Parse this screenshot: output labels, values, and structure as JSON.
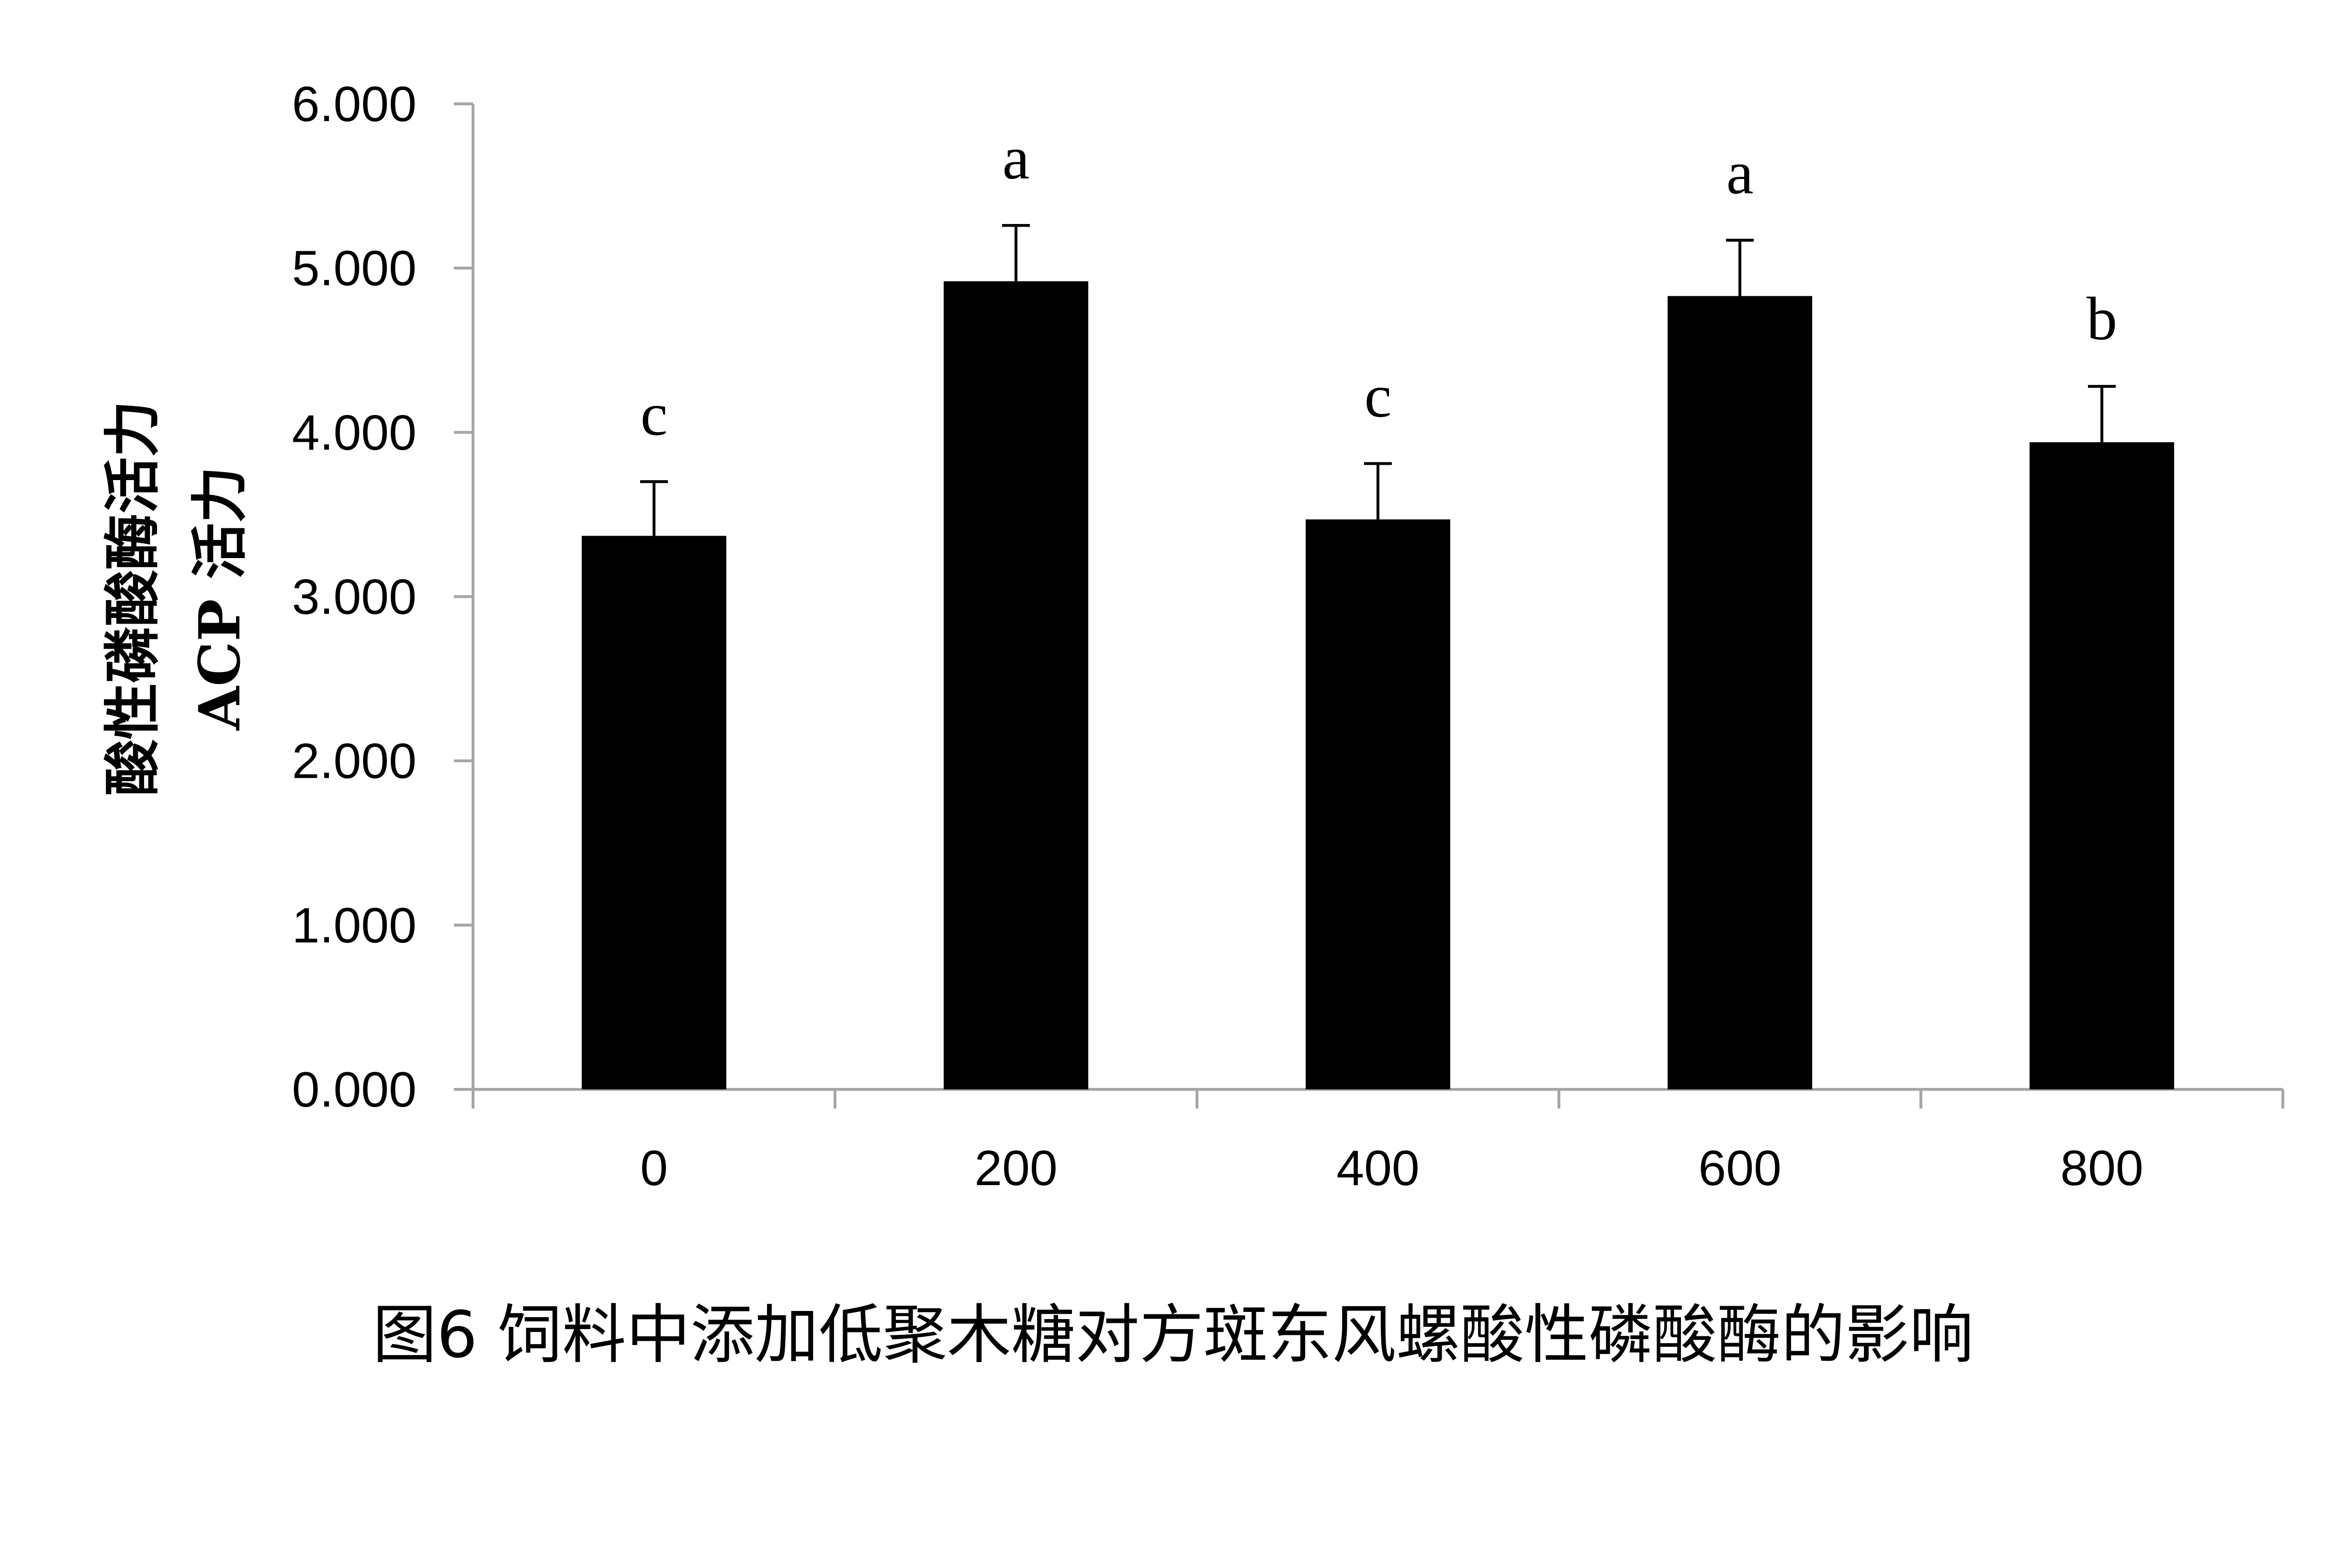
{
  "chart_data": {
    "type": "bar",
    "categories": [
      "0",
      "200",
      "400",
      "600",
      "800"
    ],
    "values": [
      3.37,
      4.92,
      3.47,
      4.83,
      3.94
    ],
    "error": [
      0.33,
      0.34,
      0.34,
      0.34,
      0.34
    ],
    "significance": [
      "c",
      "a",
      "c",
      "a",
      "b"
    ],
    "ylim": [
      0,
      6
    ],
    "yticks": [
      "0.000",
      "1.000",
      "2.000",
      "3.000",
      "4.000",
      "5.000",
      "6.000"
    ],
    "ylabel_line1": "酸性磷酸酶活力",
    "ylabel_line2": "ACP 活力",
    "xlabel": "",
    "bar_color": "#000000",
    "axis_color": "#a6a6a6",
    "grid": false
  },
  "caption": "图6 饲料中添加低聚木糖对方斑东风螺酸性磷酸酶的影响"
}
